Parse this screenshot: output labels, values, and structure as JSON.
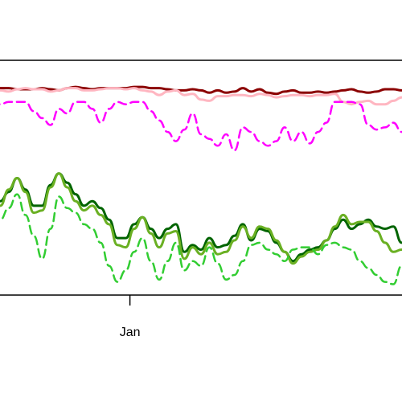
{
  "chart_data": {
    "type": "line",
    "title": "",
    "xlabel": "",
    "ylabel": "",
    "x_ticks": [
      {
        "x": 0.33,
        "label": "Jan"
      }
    ],
    "x_range": [
      0,
      1
    ],
    "y_range": [
      0,
      1
    ],
    "grid": false,
    "legend": "none",
    "series": [
      {
        "color": "#8b0000",
        "width": 3,
        "dash": "",
        "x": [
          0,
          0.02,
          0.04,
          0.06,
          0.08,
          0.1,
          0.12,
          0.14,
          0.16,
          0.18,
          0.2,
          0.22,
          0.24,
          0.26,
          0.28,
          0.3,
          0.32,
          0.34,
          0.36,
          0.38,
          0.4,
          0.42,
          0.44,
          0.46,
          0.48,
          0.5,
          0.52,
          0.54,
          0.56,
          0.58,
          0.6,
          0.62,
          0.64,
          0.66,
          0.68,
          0.7,
          0.72,
          0.74,
          0.76,
          0.78,
          0.8,
          0.82,
          0.84,
          0.86,
          0.88,
          0.9,
          0.92,
          0.94,
          0.96,
          0.98,
          1.0
        ],
        "y": [
          0.89,
          0.89,
          0.89,
          0.885,
          0.885,
          0.885,
          0.89,
          0.885,
          0.88,
          0.89,
          0.895,
          0.89,
          0.885,
          0.89,
          0.89,
          0.89,
          0.89,
          0.895,
          0.895,
          0.89,
          0.89,
          0.885,
          0.88,
          0.88,
          0.885,
          0.88,
          0.87,
          0.88,
          0.87,
          0.875,
          0.89,
          0.875,
          0.885,
          0.87,
          0.865,
          0.875,
          0.88,
          0.87,
          0.87,
          0.875,
          0.87,
          0.875,
          0.88,
          0.885,
          0.875,
          0.87,
          0.875,
          0.885,
          0.885,
          0.88,
          0.88
        ]
      },
      {
        "color": "#ffb6c1",
        "width": 3,
        "dash": "",
        "x": [
          0,
          0.02,
          0.04,
          0.06,
          0.08,
          0.1,
          0.12,
          0.14,
          0.16,
          0.18,
          0.2,
          0.22,
          0.24,
          0.26,
          0.28,
          0.3,
          0.32,
          0.34,
          0.36,
          0.38,
          0.4,
          0.42,
          0.44,
          0.46,
          0.48,
          0.5,
          0.52,
          0.54,
          0.56,
          0.58,
          0.6,
          0.62,
          0.64,
          0.66,
          0.68,
          0.7,
          0.72,
          0.74,
          0.76,
          0.78,
          0.8,
          0.82,
          0.84,
          0.86,
          0.88,
          0.9,
          0.92,
          0.94,
          0.96,
          0.98,
          1.0
        ],
        "y": [
          0.885,
          0.88,
          0.875,
          0.885,
          0.89,
          0.885,
          0.885,
          0.875,
          0.88,
          0.89,
          0.89,
          0.88,
          0.88,
          0.885,
          0.89,
          0.89,
          0.885,
          0.89,
          0.88,
          0.875,
          0.86,
          0.875,
          0.88,
          0.86,
          0.865,
          0.84,
          0.835,
          0.855,
          0.855,
          0.86,
          0.86,
          0.855,
          0.865,
          0.86,
          0.85,
          0.855,
          0.86,
          0.86,
          0.855,
          0.86,
          0.86,
          0.865,
          0.83,
          0.82,
          0.83,
          0.835,
          0.82,
          0.82,
          0.835,
          0.85,
          0.85
        ]
      },
      {
        "color": "#ff00ff",
        "width": 2.5,
        "dash": "10,6",
        "x": [
          0,
          0.02,
          0.04,
          0.06,
          0.08,
          0.1,
          0.12,
          0.14,
          0.16,
          0.18,
          0.2,
          0.22,
          0.24,
          0.26,
          0.28,
          0.3,
          0.32,
          0.34,
          0.36,
          0.38,
          0.4,
          0.42,
          0.44,
          0.46,
          0.48,
          0.5,
          0.52,
          0.54,
          0.56,
          0.58,
          0.6,
          0.62,
          0.64,
          0.66,
          0.68,
          0.7,
          0.72,
          0.74,
          0.76,
          0.78,
          0.8,
          0.82,
          0.84,
          0.86,
          0.88,
          0.9,
          0.92,
          0.94,
          0.96,
          0.98,
          1.0
        ],
        "y": [
          0.83,
          0.82,
          0.83,
          0.83,
          0.83,
          0.79,
          0.76,
          0.73,
          0.8,
          0.78,
          0.83,
          0.83,
          0.8,
          0.74,
          0.8,
          0.83,
          0.82,
          0.83,
          0.83,
          0.79,
          0.75,
          0.7,
          0.66,
          0.71,
          0.78,
          0.69,
          0.67,
          0.64,
          0.69,
          0.62,
          0.72,
          0.7,
          0.66,
          0.64,
          0.66,
          0.72,
          0.66,
          0.7,
          0.65,
          0.7,
          0.74,
          0.83,
          0.83,
          0.83,
          0.82,
          0.73,
          0.71,
          0.72,
          0.74,
          0.7,
          0.74
        ]
      },
      {
        "color": "#006400",
        "width": 3,
        "dash": "",
        "x": [
          0,
          0.02,
          0.04,
          0.06,
          0.08,
          0.1,
          0.12,
          0.14,
          0.16,
          0.18,
          0.2,
          0.22,
          0.24,
          0.26,
          0.28,
          0.3,
          0.32,
          0.34,
          0.36,
          0.38,
          0.4,
          0.42,
          0.44,
          0.46,
          0.48,
          0.5,
          0.52,
          0.54,
          0.56,
          0.58,
          0.6,
          0.62,
          0.64,
          0.66,
          0.68,
          0.7,
          0.72,
          0.74,
          0.76,
          0.78,
          0.8,
          0.82,
          0.84,
          0.86,
          0.88,
          0.9,
          0.92,
          0.94,
          0.96,
          0.98,
          1.0
        ],
        "y": [
          0.36,
          0.4,
          0.44,
          0.5,
          0.45,
          0.38,
          0.38,
          0.47,
          0.52,
          0.48,
          0.43,
          0.38,
          0.4,
          0.37,
          0.32,
          0.24,
          0.24,
          0.3,
          0.33,
          0.28,
          0.24,
          0.28,
          0.3,
          0.18,
          0.21,
          0.19,
          0.24,
          0.2,
          0.21,
          0.25,
          0.3,
          0.23,
          0.28,
          0.27,
          0.22,
          0.18,
          0.14,
          0.17,
          0.19,
          0.2,
          0.23,
          0.28,
          0.32,
          0.28,
          0.3,
          0.32,
          0.29,
          0.28,
          0.29,
          0.22,
          0.25
        ]
      },
      {
        "color": "#6ab023",
        "width": 3,
        "dash": "",
        "x": [
          0,
          0.02,
          0.04,
          0.06,
          0.08,
          0.1,
          0.12,
          0.14,
          0.16,
          0.18,
          0.2,
          0.22,
          0.24,
          0.26,
          0.28,
          0.3,
          0.32,
          0.34,
          0.36,
          0.38,
          0.4,
          0.42,
          0.44,
          0.46,
          0.48,
          0.5,
          0.52,
          0.54,
          0.56,
          0.58,
          0.6,
          0.62,
          0.64,
          0.66,
          0.68,
          0.7,
          0.72,
          0.74,
          0.76,
          0.78,
          0.8,
          0.82,
          0.84,
          0.86,
          0.88,
          0.9,
          0.92,
          0.94,
          0.96,
          0.98,
          1.0
        ],
        "y": [
          0.34,
          0.38,
          0.45,
          0.5,
          0.44,
          0.35,
          0.36,
          0.46,
          0.52,
          0.46,
          0.4,
          0.36,
          0.38,
          0.34,
          0.3,
          0.21,
          0.2,
          0.28,
          0.33,
          0.26,
          0.2,
          0.26,
          0.27,
          0.15,
          0.2,
          0.17,
          0.22,
          0.17,
          0.18,
          0.23,
          0.29,
          0.24,
          0.29,
          0.28,
          0.23,
          0.18,
          0.13,
          0.16,
          0.18,
          0.19,
          0.23,
          0.29,
          0.34,
          0.3,
          0.31,
          0.31,
          0.27,
          0.22,
          0.18,
          0.19,
          0.25
        ]
      },
      {
        "color": "#32cd32",
        "width": 2.5,
        "dash": "10,6",
        "x": [
          0,
          0.02,
          0.04,
          0.06,
          0.08,
          0.1,
          0.12,
          0.14,
          0.16,
          0.18,
          0.2,
          0.22,
          0.24,
          0.26,
          0.28,
          0.3,
          0.32,
          0.34,
          0.36,
          0.38,
          0.4,
          0.42,
          0.44,
          0.46,
          0.48,
          0.5,
          0.52,
          0.54,
          0.56,
          0.58,
          0.6,
          0.62,
          0.64,
          0.66,
          0.68,
          0.7,
          0.72,
          0.74,
          0.76,
          0.78,
          0.8,
          0.82,
          0.84,
          0.86,
          0.88,
          0.9,
          0.92,
          0.94,
          0.96,
          0.98,
          1.0
        ],
        "y": [
          0.3,
          0.32,
          0.37,
          0.43,
          0.34,
          0.25,
          0.15,
          0.28,
          0.42,
          0.37,
          0.35,
          0.3,
          0.28,
          0.22,
          0.12,
          0.05,
          0.1,
          0.18,
          0.24,
          0.14,
          0.06,
          0.14,
          0.22,
          0.1,
          0.14,
          0.12,
          0.2,
          0.13,
          0.06,
          0.08,
          0.14,
          0.21,
          0.22,
          0.19,
          0.17,
          0.14,
          0.19,
          0.2,
          0.2,
          0.17,
          0.21,
          0.22,
          0.2,
          0.19,
          0.14,
          0.11,
          0.08,
          0.05,
          0.04,
          0.12,
          0.18
        ]
      }
    ]
  }
}
